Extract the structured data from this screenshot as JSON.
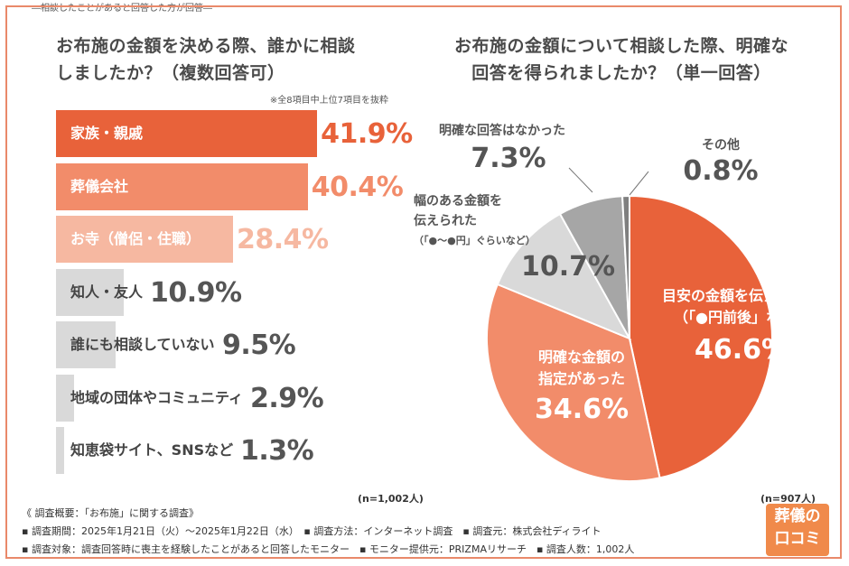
{
  "left": {
    "title_line1": "お布施の金額を決める際、誰かに相談",
    "title_line2": "しましたか？（複数回答可）",
    "note": "※全8項目中上位7項目を抜粋",
    "n": "(n=1,002人)"
  },
  "right": {
    "title_line1": "お布施の金額について相談した際、明確な",
    "title_line2": "回答を得られましたか？（単一回答）",
    "subtitle": "―相談したことがあると回答した方が回答―",
    "n": "(n=907人)"
  },
  "colors": {
    "dark_orange": "#e8623a",
    "mid_orange": "#f28c6a",
    "light_orange": "#f6b8a1",
    "gray": "#d9d9d9",
    "dark_gray": "#a6a6a6",
    "darkest_gray": "#7f7f7f",
    "text_gray": "#555555"
  },
  "chart_data": [
    {
      "type": "bar",
      "orientation": "horizontal",
      "title": "お布施の金額を決める際、誰かに相談しましたか？（複数回答可）",
      "categories": [
        "家族・親戚",
        "葬儀会社",
        "お寺（僧侶・住職）",
        "知人・友人",
        "誰にも相談していない",
        "地域の団体やコミュニティ",
        "知恵袋サイト、SNSなど"
      ],
      "values": [
        41.9,
        40.4,
        28.4,
        10.9,
        9.5,
        2.9,
        1.3
      ],
      "value_labels": [
        "41.9%",
        "40.4%",
        "28.4%",
        "10.9%",
        "9.5%",
        "2.9%",
        "1.3%"
      ],
      "xlim": [
        0,
        100
      ],
      "grid": false
    },
    {
      "type": "pie",
      "title": "お布施の金額について相談した際、明確な回答を得られましたか？（単一回答）",
      "categories": [
        "目安の金額を伝えられた（「●円前後」など）",
        "明確な金額の指定があった",
        "幅のある金額を伝えられた（「●～●円」ぐらいなど）",
        "明確な回答はなかった",
        "その他"
      ],
      "values": [
        46.6,
        34.6,
        10.7,
        7.3,
        0.8
      ],
      "value_labels": [
        "46.6%",
        "34.6%",
        "10.7%",
        "7.3%",
        "0.8%"
      ]
    }
  ],
  "pie_labels": {
    "s0_line1": "目安の金額を伝えられた",
    "s0_line2": "（「●円前後」など）",
    "s1_line1": "明確な金額の",
    "s1_line2": "指定があった",
    "s2_line1": "幅のある金額を",
    "s2_line2": "伝えられた",
    "s2_line3": "（「●～●円」ぐらいなど）",
    "s3_line1": "明確な回答はなかった",
    "s4_line1": "その他"
  },
  "footer": {
    "line1": "《 調査概要：「お布施」に関する調査》",
    "line2": "▪ 調査期間：2025年1月21日（火）～2025年1月22日（水）　▪ 調査方法：インターネット調査　▪ 調査元：株式会社ディライト",
    "line3": "▪ 調査対象：調査回答時に喪主を経験したことがあると回答したモニター　▪ モニター提供元：PRIZMAリサーチ　▪ 調査人数：1,002人"
  },
  "logo": {
    "line1": "葬儀の",
    "line2": "口コミ"
  }
}
